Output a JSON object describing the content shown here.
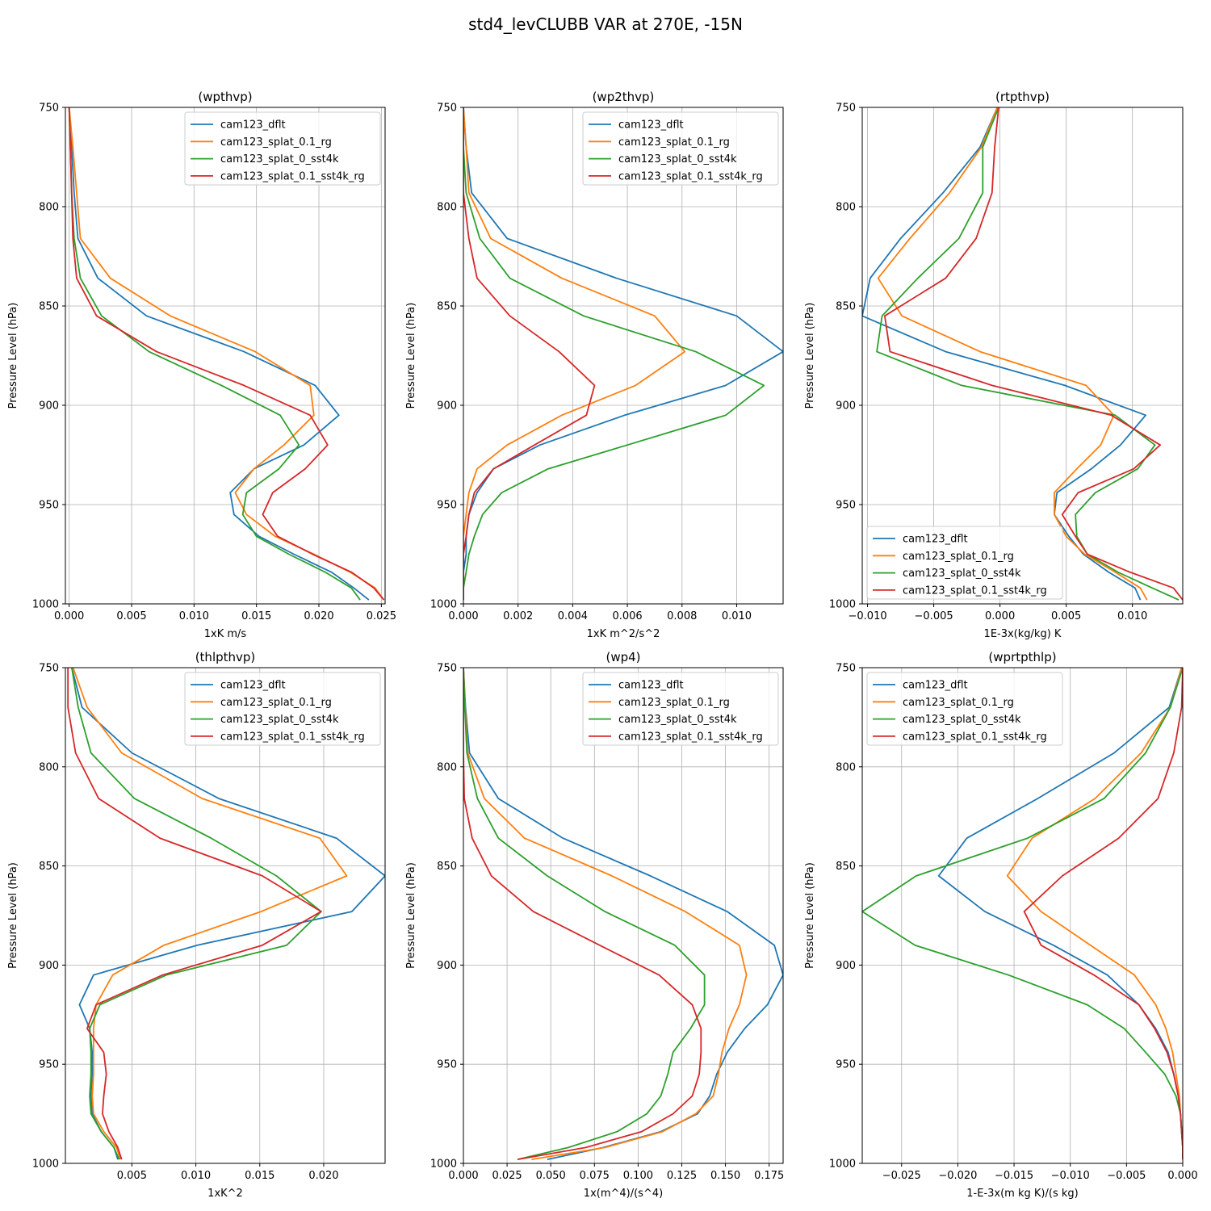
{
  "figure": {
    "title": "std4_levCLUBB VAR at 270E, -15N"
  },
  "colors": {
    "cam123_dflt": "#1f77b4",
    "cam123_splat_0.1_rg": "#ff7f0e",
    "cam123_splat_0_sst4k": "#2ca02c",
    "cam123_splat_0.1_sst4k_rg": "#d62728"
  },
  "chart_data": [
    {
      "type": "line",
      "title": "(wpthvp)",
      "xlabel": "1xK m/s",
      "ylabel": "Pressure Level (hPa)",
      "xlim": [
        -0.0003,
        0.0253
      ],
      "ylim": [
        1000,
        750
      ],
      "xticks": [
        0.0,
        0.005,
        0.01,
        0.015,
        0.02,
        0.025
      ],
      "xtick_labels": [
        "0.000",
        "0.005",
        "0.010",
        "0.015",
        "0.020",
        "0.025"
      ],
      "yticks": [
        750,
        800,
        850,
        900,
        950,
        1000
      ],
      "ytick_labels": [
        "750",
        "800",
        "850",
        "900",
        "950",
        "1000"
      ],
      "grid": true,
      "legend": "upper-right",
      "y": [
        750,
        770,
        793,
        816,
        836,
        855,
        873,
        890,
        905,
        920,
        932,
        944,
        955,
        966,
        975,
        984,
        992,
        998
      ],
      "series": [
        {
          "name": "cam123_dflt",
          "values": [
            0.0,
            0.0002,
            0.0004,
            0.0007,
            0.0023,
            0.0062,
            0.014,
            0.0197,
            0.0216,
            0.0188,
            0.0148,
            0.0129,
            0.0132,
            0.0152,
            0.018,
            0.021,
            0.0228,
            0.024
          ]
        },
        {
          "name": "cam123_splat_0.1_rg",
          "values": [
            0.0,
            0.0003,
            0.0006,
            0.0009,
            0.0033,
            0.0081,
            0.0149,
            0.0193,
            0.0196,
            0.0172,
            0.0148,
            0.0133,
            0.0142,
            0.0165,
            0.0196,
            0.0225,
            0.0245,
            0.0252
          ]
        },
        {
          "name": "cam123_splat_0_sst4k",
          "values": [
            0.0,
            0.0001,
            0.0002,
            0.0004,
            0.0009,
            0.0026,
            0.0064,
            0.0122,
            0.0169,
            0.0184,
            0.0168,
            0.0142,
            0.0139,
            0.015,
            0.0176,
            0.0205,
            0.0226,
            0.0233
          ]
        },
        {
          "name": "cam123_splat_0.1_sst4k_rg",
          "values": [
            0.0,
            0.0001,
            0.0002,
            0.0003,
            0.0006,
            0.0022,
            0.007,
            0.014,
            0.0193,
            0.0207,
            0.0189,
            0.0163,
            0.0155,
            0.0167,
            0.0195,
            0.0226,
            0.0244,
            0.0252
          ]
        }
      ]
    },
    {
      "type": "line",
      "title": "(wp2thvp)",
      "xlabel": "1xK m^2/s^2",
      "ylabel": "Pressure Level (hPa)",
      "xlim": [
        0.0,
        0.0117
      ],
      "ylim": [
        1000,
        750
      ],
      "xticks": [
        0.0,
        0.002,
        0.004,
        0.006,
        0.008,
        0.01
      ],
      "xtick_labels": [
        "0.000",
        "0.002",
        "0.004",
        "0.006",
        "0.008",
        "0.010"
      ],
      "yticks": [
        750,
        800,
        850,
        900,
        950,
        1000
      ],
      "ytick_labels": [
        "750",
        "800",
        "850",
        "900",
        "950",
        "1000"
      ],
      "grid": true,
      "legend": "upper-right",
      "y": [
        750,
        770,
        793,
        816,
        836,
        855,
        873,
        890,
        905,
        920,
        932,
        944,
        955,
        966,
        975,
        984,
        992,
        998
      ],
      "series": [
        {
          "name": "cam123_dflt",
          "values": [
            0.0,
            0.0001,
            0.0003,
            0.0016,
            0.0056,
            0.01,
            0.0117,
            0.0096,
            0.0059,
            0.0028,
            0.0011,
            0.0005,
            0.0002,
            0.0001,
            0.0001,
            0.0,
            0.0,
            0.0
          ]
        },
        {
          "name": "cam123_splat_0.1_rg",
          "values": [
            0.0,
            0.0001,
            0.0002,
            0.001,
            0.0036,
            0.007,
            0.0081,
            0.0063,
            0.0036,
            0.0016,
            0.0005,
            0.0002,
            0.0001,
            0.0,
            0.0,
            0.0,
            0.0,
            0.0
          ]
        },
        {
          "name": "cam123_splat_0_sst4k",
          "values": [
            0.0,
            0.0,
            0.0001,
            0.0006,
            0.0017,
            0.0044,
            0.0085,
            0.011,
            0.0096,
            0.006,
            0.0031,
            0.0014,
            0.0007,
            0.0004,
            0.0002,
            0.0001,
            0.0,
            0.0
          ]
        },
        {
          "name": "cam123_splat_0.1_sst4k_rg",
          "values": [
            0.0,
            0.0,
            0.0,
            0.0002,
            0.0005,
            0.0017,
            0.0035,
            0.0048,
            0.0045,
            0.0026,
            0.0011,
            0.0004,
            0.0002,
            0.0001,
            0.0,
            0.0,
            0.0,
            0.0
          ]
        }
      ]
    },
    {
      "type": "line",
      "title": "(rtpthvp)",
      "xlabel": "1E-3x(kg/kg) K",
      "ylabel": "Pressure Level (hPa)",
      "xlim": [
        -0.0104,
        0.0138
      ],
      "ylim": [
        1000,
        750
      ],
      "xticks": [
        -0.01,
        -0.005,
        0.0,
        0.005,
        0.01
      ],
      "xtick_labels": [
        "−0.010",
        "−0.005",
        "0.000",
        "0.005",
        "0.010"
      ],
      "yticks": [
        750,
        800,
        850,
        900,
        950,
        1000
      ],
      "ytick_labels": [
        "750",
        "800",
        "850",
        "900",
        "950",
        "1000"
      ],
      "grid": true,
      "legend": "lower-left",
      "y": [
        750,
        770,
        793,
        816,
        836,
        855,
        873,
        890,
        905,
        920,
        932,
        944,
        955,
        966,
        975,
        984,
        992,
        998
      ],
      "series": [
        {
          "name": "cam123_dflt",
          "values": [
            -0.0002,
            -0.0015,
            -0.0043,
            -0.0075,
            -0.0098,
            -0.0104,
            -0.0041,
            0.0049,
            0.011,
            0.0091,
            0.0069,
            0.0043,
            0.0041,
            0.0052,
            0.0063,
            0.0082,
            0.0102,
            0.0106
          ]
        },
        {
          "name": "cam123_splat_0.1_rg",
          "values": [
            -0.0002,
            -0.0014,
            -0.0038,
            -0.0068,
            -0.0092,
            -0.0074,
            -0.0015,
            0.0065,
            0.0086,
            0.0076,
            0.0058,
            0.0041,
            0.0041,
            0.005,
            0.0064,
            0.0087,
            0.0106,
            0.0111
          ]
        },
        {
          "name": "cam123_splat_0_sst4k",
          "values": [
            -0.0001,
            -0.0013,
            -0.0013,
            -0.0031,
            -0.0062,
            -0.0089,
            -0.0093,
            -0.0029,
            0.0087,
            0.0117,
            0.0104,
            0.0072,
            0.0057,
            0.0058,
            0.0066,
            0.0089,
            0.0115,
            0.0135
          ]
        },
        {
          "name": "cam123_splat_0.1_sst4k_rg",
          "values": [
            -0.0001,
            -0.0004,
            -0.0006,
            -0.0018,
            -0.0041,
            -0.0087,
            -0.0083,
            -0.0006,
            0.0084,
            0.0121,
            0.0101,
            0.0059,
            0.0047,
            0.0057,
            0.0066,
            0.0098,
            0.0131,
            0.0138
          ]
        }
      ]
    },
    {
      "type": "line",
      "title": "(thlpthvp)",
      "xlabel": "1xK^2",
      "ylabel": "Pressure Level (hPa)",
      "xlim": [
        -0.0002,
        0.0248
      ],
      "ylim": [
        1000,
        750
      ],
      "xticks": [
        0.005,
        0.01,
        0.015,
        0.02
      ],
      "xtick_labels": [
        "0.005",
        "0.010",
        "0.015",
        "0.020"
      ],
      "yticks": [
        750,
        800,
        850,
        900,
        950,
        1000
      ],
      "ytick_labels": [
        "750",
        "800",
        "850",
        "900",
        "950",
        "1000"
      ],
      "grid": true,
      "legend": "upper-right",
      "y": [
        750,
        770,
        793,
        816,
        836,
        855,
        873,
        890,
        905,
        920,
        932,
        944,
        955,
        966,
        975,
        984,
        992,
        998
      ],
      "series": [
        {
          "name": "cam123_dflt",
          "values": [
            0.0003,
            0.0011,
            0.005,
            0.0118,
            0.021,
            0.0248,
            0.0222,
            0.0101,
            0.002,
            0.0009,
            0.0017,
            0.0019,
            0.0019,
            0.0018,
            0.0019,
            0.0026,
            0.0036,
            0.0039
          ]
        },
        {
          "name": "cam123_splat_0.1_rg",
          "values": [
            0.0004,
            0.0015,
            0.0042,
            0.0105,
            0.0197,
            0.0218,
            0.0151,
            0.0075,
            0.0035,
            0.0022,
            0.002,
            0.002,
            0.002,
            0.0019,
            0.002,
            0.0028,
            0.0038,
            0.0041
          ]
        },
        {
          "name": "cam123_splat_0_sst4k",
          "values": [
            0.0003,
            0.0008,
            0.0018,
            0.0052,
            0.0112,
            0.0163,
            0.0198,
            0.0171,
            0.0077,
            0.0025,
            0.0017,
            0.0018,
            0.0018,
            0.0017,
            0.0018,
            0.0026,
            0.0036,
            0.004
          ]
        },
        {
          "name": "cam123_splat_0.1_sst4k_rg",
          "values": [
            0.0,
            0.0,
            0.0006,
            0.0024,
            0.0072,
            0.0152,
            0.0198,
            0.0152,
            0.0074,
            0.0022,
            0.0015,
            0.0028,
            0.003,
            0.0028,
            0.0027,
            0.0032,
            0.0039,
            0.0042
          ]
        }
      ]
    },
    {
      "type": "line",
      "title": "(wp4)",
      "xlabel": "1x(m^4)/(s^4)",
      "ylabel": "Pressure Level (hPa)",
      "xlim": [
        0.0,
        0.183
      ],
      "ylim": [
        1000,
        750
      ],
      "xticks": [
        0.0,
        0.025,
        0.05,
        0.075,
        0.1,
        0.125,
        0.15,
        0.175
      ],
      "xtick_labels": [
        "0.000",
        "0.025",
        "0.050",
        "0.075",
        "0.100",
        "0.125",
        "0.150",
        "0.175"
      ],
      "yticks": [
        750,
        800,
        850,
        900,
        950,
        1000
      ],
      "ytick_labels": [
        "750",
        "800",
        "850",
        "900",
        "950",
        "1000"
      ],
      "grid": true,
      "legend": "upper-right",
      "y": [
        750,
        770,
        793,
        816,
        836,
        855,
        873,
        890,
        905,
        920,
        932,
        944,
        955,
        966,
        975,
        984,
        992,
        998
      ],
      "series": [
        {
          "name": "cam123_dflt",
          "values": [
            0.0,
            0.0012,
            0.0035,
            0.02,
            0.057,
            0.107,
            0.151,
            0.178,
            0.183,
            0.174,
            0.161,
            0.151,
            0.145,
            0.141,
            0.134,
            0.113,
            0.08,
            0.048
          ]
        },
        {
          "name": "cam123_splat_0.1_rg",
          "values": [
            0.0,
            0.001,
            0.0025,
            0.012,
            0.035,
            0.085,
            0.127,
            0.158,
            0.162,
            0.158,
            0.152,
            0.148,
            0.146,
            0.143,
            0.133,
            0.114,
            0.081,
            0.039
          ]
        },
        {
          "name": "cam123_splat_0_sst4k",
          "values": [
            0.0,
            0.0008,
            0.002,
            0.008,
            0.02,
            0.048,
            0.081,
            0.121,
            0.138,
            0.138,
            0.13,
            0.12,
            0.117,
            0.113,
            0.105,
            0.088,
            0.06,
            0.031
          ]
        },
        {
          "name": "cam123_splat_0.1_sst4k_rg",
          "values": [
            0.0,
            0.0,
            0.0,
            0.0005,
            0.005,
            0.016,
            0.04,
            0.078,
            0.112,
            0.131,
            0.136,
            0.136,
            0.135,
            0.131,
            0.12,
            0.102,
            0.07,
            0.031
          ]
        }
      ]
    },
    {
      "type": "line",
      "title": "(wprtpthlp)",
      "xlabel": "1-E-3x(m kg K)/(s kg)",
      "ylabel": "Pressure Level (hPa)",
      "xlim": [
        -0.0285,
        0.0
      ],
      "ylim": [
        1000,
        750
      ],
      "xticks": [
        -0.025,
        -0.02,
        -0.015,
        -0.01,
        -0.005,
        0.0
      ],
      "xtick_labels": [
        "−0.025",
        "−0.020",
        "−0.015",
        "−0.010",
        "−0.005",
        "0.000"
      ],
      "yticks": [
        750,
        800,
        850,
        900,
        950,
        1000
      ],
      "ytick_labels": [
        "750",
        "800",
        "850",
        "900",
        "950",
        "1000"
      ],
      "grid": true,
      "legend": "upper-left",
      "y": [
        750,
        770,
        793,
        816,
        836,
        855,
        873,
        890,
        905,
        920,
        932,
        944,
        955,
        966,
        975,
        984,
        992,
        998
      ],
      "series": [
        {
          "name": "cam123_dflt",
          "values": [
            -0.0001,
            -0.0012,
            -0.0061,
            -0.0129,
            -0.0192,
            -0.0217,
            -0.0176,
            -0.0115,
            -0.0067,
            -0.0039,
            -0.0024,
            -0.0013,
            -0.0008,
            -0.0004,
            -0.0002,
            -0.0001,
            0.0,
            0.0
          ]
        },
        {
          "name": "cam123_splat_0.1_rg",
          "values": [
            -0.0001,
            -0.0011,
            -0.0037,
            -0.0078,
            -0.0134,
            -0.0156,
            -0.0126,
            -0.0082,
            -0.0043,
            -0.0024,
            -0.0015,
            -0.0009,
            -0.0006,
            -0.0003,
            -0.0002,
            -0.0001,
            0.0,
            0.0
          ]
        },
        {
          "name": "cam123_splat_0_sst4k",
          "values": [
            0.0,
            -0.0011,
            -0.0033,
            -0.007,
            -0.0138,
            -0.0237,
            -0.0285,
            -0.0238,
            -0.0155,
            -0.0085,
            -0.0052,
            -0.0033,
            -0.0016,
            -0.0006,
            -0.0002,
            -0.0001,
            0.0,
            0.0
          ]
        },
        {
          "name": "cam123_splat_0.1_sst4k_rg",
          "values": [
            0.0,
            -0.0001,
            -0.0008,
            -0.0022,
            -0.0057,
            -0.0107,
            -0.0141,
            -0.0126,
            -0.0079,
            -0.0039,
            -0.0025,
            -0.0014,
            -0.0008,
            -0.0004,
            -0.0002,
            -0.0001,
            0.0,
            0.0
          ]
        }
      ]
    }
  ]
}
